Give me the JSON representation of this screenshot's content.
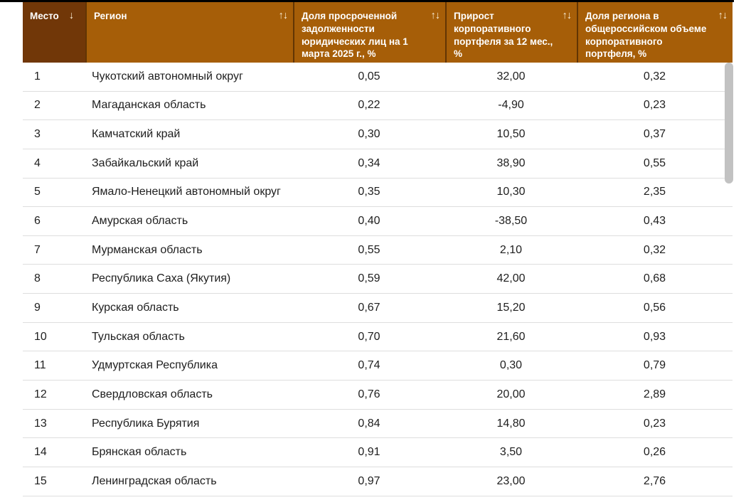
{
  "colors": {
    "header_dark": "#713708",
    "header_light": "#a65e08",
    "header_text": "#ffffff",
    "sort_icon": "#f7ead2",
    "row_divider": "#dedede",
    "body_text": "#1e1e1e",
    "scrollbar_thumb": "#c2c2c2",
    "top_bar": "#000000"
  },
  "table": {
    "columns": [
      {
        "label": "Место",
        "sort_glyph": "↓",
        "icon": "sort-descending-icon"
      },
      {
        "label": "Регион",
        "sort_glyph": "↑↓",
        "icon": "sort-toggle-icon"
      },
      {
        "label": "Доля просроченной задолженности юридических лиц на 1 марта 2025 г., %",
        "sort_glyph": "↑↓",
        "icon": "sort-toggle-icon"
      },
      {
        "label": "Прирост корпоративного портфеля за 12 мес., %",
        "sort_glyph": "↑↓",
        "icon": "sort-toggle-icon"
      },
      {
        "label": "Доля региона в общероссийском объеме корпоративного портфеля, %",
        "sort_glyph": "↑↓",
        "icon": "sort-toggle-icon"
      }
    ],
    "rows": [
      {
        "place": "1",
        "region": "Чукотский автономный округ",
        "overdue_share": "0,05",
        "growth_12m": "32,00",
        "share_russia": "0,32"
      },
      {
        "place": "2",
        "region": "Магаданская область",
        "overdue_share": "0,22",
        "growth_12m": "-4,90",
        "share_russia": "0,23"
      },
      {
        "place": "3",
        "region": "Камчатский край",
        "overdue_share": "0,30",
        "growth_12m": "10,50",
        "share_russia": "0,37"
      },
      {
        "place": "4",
        "region": "Забайкальский край",
        "overdue_share": "0,34",
        "growth_12m": "38,90",
        "share_russia": "0,55"
      },
      {
        "place": "5",
        "region": "Ямало-Ненецкий автономный округ",
        "overdue_share": "0,35",
        "growth_12m": "10,30",
        "share_russia": "2,35"
      },
      {
        "place": "6",
        "region": "Амурская область",
        "overdue_share": "0,40",
        "growth_12m": "-38,50",
        "share_russia": "0,43"
      },
      {
        "place": "7",
        "region": "Мурманская область",
        "overdue_share": "0,55",
        "growth_12m": "2,10",
        "share_russia": "0,32"
      },
      {
        "place": "8",
        "region": "Республика Саха (Якутия)",
        "overdue_share": "0,59",
        "growth_12m": "42,00",
        "share_russia": "0,68"
      },
      {
        "place": "9",
        "region": "Курская область",
        "overdue_share": "0,67",
        "growth_12m": "15,20",
        "share_russia": "0,56"
      },
      {
        "place": "10",
        "region": "Тульская область",
        "overdue_share": "0,70",
        "growth_12m": "21,60",
        "share_russia": "0,93"
      },
      {
        "place": "11",
        "region": "Удмуртская Республика",
        "overdue_share": "0,74",
        "growth_12m": "0,30",
        "share_russia": "0,79"
      },
      {
        "place": "12",
        "region": "Свердловская область",
        "overdue_share": "0,76",
        "growth_12m": "20,00",
        "share_russia": "2,89"
      },
      {
        "place": "13",
        "region": "Республика Бурятия",
        "overdue_share": "0,84",
        "growth_12m": "14,80",
        "share_russia": "0,23"
      },
      {
        "place": "14",
        "region": "Брянская область",
        "overdue_share": "0,91",
        "growth_12m": "3,50",
        "share_russia": "0,26"
      },
      {
        "place": "15",
        "region": "Ленинградская область",
        "overdue_share": "0,97",
        "growth_12m": "23,00",
        "share_russia": "2,76"
      }
    ]
  }
}
